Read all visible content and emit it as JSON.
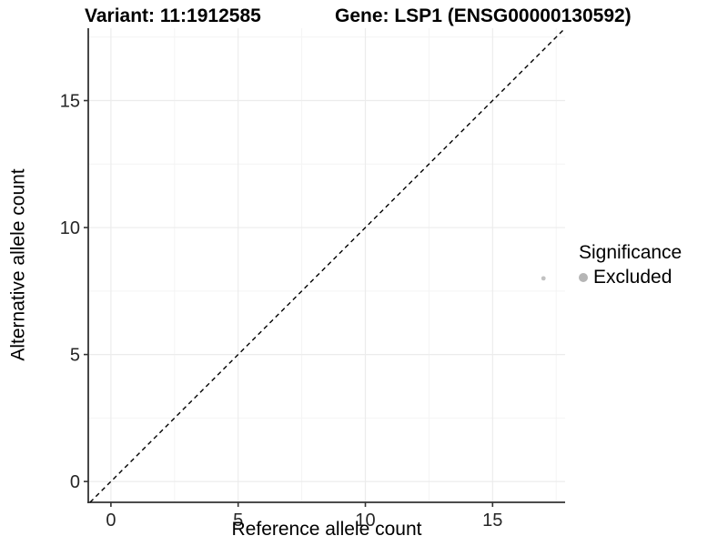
{
  "title": {
    "variant": "Variant: 11:1912585",
    "gene": "Gene: LSP1 (ENSG00000130592)"
  },
  "axes": {
    "x_label": "Reference allele count",
    "y_label": "Alternative allele count"
  },
  "legend": {
    "title": "Significance",
    "items": [
      {
        "label": "Excluded",
        "color": "#b5b5b5"
      }
    ]
  },
  "colors": {
    "background": "#ffffff",
    "axis_line": "#333333",
    "tick_label": "#262626",
    "grid_major": "#ececec",
    "grid_minor": "#f4f4f4",
    "point": "#c2c2c2",
    "reference_line": "#000000"
  },
  "chart_data": {
    "type": "scatter",
    "title": "Variant: 11:1912585    Gene: LSP1 (ENSG00000130592)",
    "xlabel": "Reference allele count",
    "ylabel": "Alternative allele count",
    "xlim": [
      -0.89,
      17.85
    ],
    "ylim": [
      -0.82,
      17.85
    ],
    "x_ticks": [
      0,
      5,
      10,
      15
    ],
    "y_ticks": [
      0,
      5,
      10,
      15
    ],
    "x_minor_ticks": [
      2.5,
      7.5,
      12.5,
      17.5
    ],
    "y_minor_ticks": [
      2.5,
      7.5,
      12.5,
      17.5
    ],
    "grid": true,
    "legend_position": "right",
    "series": [
      {
        "name": "Excluded",
        "color": "#c2c2c2",
        "points": [
          {
            "x": 17,
            "y": 8
          }
        ]
      }
    ],
    "reference_line": {
      "slope": 1,
      "intercept": 0,
      "style": "dashed",
      "color": "#000000"
    }
  }
}
